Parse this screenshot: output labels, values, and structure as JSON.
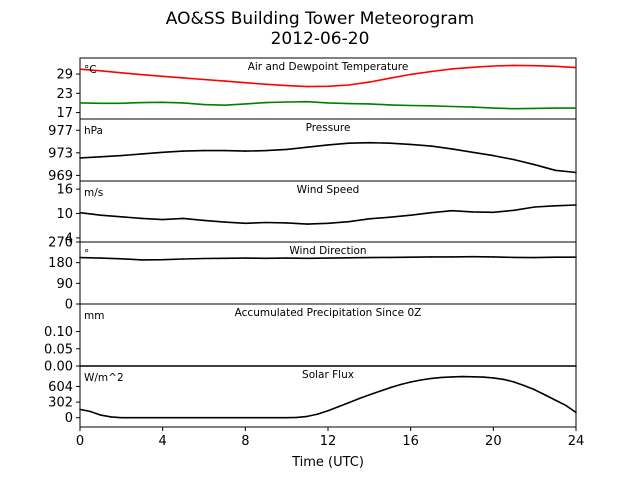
{
  "figure": {
    "title_line1": "AO&SS Building Tower Meteorogram",
    "title_line2": "2012-06-20",
    "xlabel": "Time (UTC)"
  },
  "chart_data": {
    "type": "line",
    "x_range": [
      0,
      24
    ],
    "x_ticks": [
      0,
      4,
      8,
      12,
      16,
      20,
      24
    ],
    "grid": false,
    "panels": [
      {
        "name": "temperature",
        "title": "Air and Dewpoint Temperature",
        "unit": "°C",
        "ylim": [
          15,
          34
        ],
        "yticks": [
          17,
          23,
          29
        ],
        "series": [
          {
            "color": "#ff0000",
            "x": [
              0,
              1,
              2,
              3,
              4,
              5,
              6,
              7,
              8,
              9,
              10,
              11,
              12,
              13,
              14,
              15,
              16,
              17,
              18,
              19,
              20,
              21,
              22,
              23,
              24
            ],
            "y": [
              30.5,
              30.0,
              29.4,
              28.8,
              28.3,
              27.8,
              27.3,
              26.8,
              26.3,
              25.8,
              25.4,
              25.1,
              25.2,
              25.6,
              26.5,
              27.7,
              28.9,
              29.8,
              30.6,
              31.1,
              31.5,
              31.7,
              31.6,
              31.4,
              31.0
            ]
          },
          {
            "color": "#008000",
            "x": [
              0,
              1,
              2,
              3,
              4,
              5,
              6,
              7,
              8,
              9,
              10,
              11,
              12,
              13,
              14,
              15,
              16,
              17,
              18,
              19,
              20,
              21,
              22,
              23,
              24
            ],
            "y": [
              20.0,
              19.9,
              19.9,
              20.1,
              20.2,
              20.0,
              19.5,
              19.3,
              19.7,
              20.1,
              20.3,
              20.4,
              20.0,
              19.8,
              19.7,
              19.4,
              19.2,
              19.1,
              18.9,
              18.7,
              18.4,
              18.2,
              18.3,
              18.4,
              18.4
            ]
          }
        ]
      },
      {
        "name": "pressure",
        "title": "Pressure",
        "unit": "hPa",
        "ylim": [
          968,
          979
        ],
        "yticks": [
          969,
          973,
          977
        ],
        "series": [
          {
            "color": "#000000",
            "x": [
              0,
              1,
              2,
              3,
              4,
              5,
              6,
              7,
              8,
              9,
              10,
              11,
              12,
              13,
              14,
              15,
              16,
              17,
              18,
              19,
              20,
              21,
              22,
              23,
              24
            ],
            "y": [
              972.1,
              972.3,
              972.5,
              972.8,
              973.1,
              973.3,
              973.4,
              973.4,
              973.3,
              973.4,
              973.6,
              974.0,
              974.4,
              974.7,
              974.8,
              974.7,
              974.5,
              974.2,
              973.7,
              973.1,
              972.5,
              971.8,
              970.9,
              969.9,
              969.5
            ]
          }
        ]
      },
      {
        "name": "wind_speed",
        "title": "Wind Speed",
        "unit": "m/s",
        "ylim": [
          3,
          18
        ],
        "yticks": [
          4,
          10,
          16
        ],
        "series": [
          {
            "color": "#000000",
            "x": [
              0,
              1,
              2,
              3,
              4,
              5,
              6,
              7,
              8,
              9,
              10,
              11,
              12,
              13,
              14,
              15,
              16,
              17,
              18,
              19,
              20,
              21,
              22,
              23,
              24
            ],
            "y": [
              10.2,
              9.6,
              9.2,
              8.8,
              8.5,
              8.8,
              8.3,
              7.9,
              7.6,
              7.8,
              7.7,
              7.4,
              7.6,
              8.0,
              8.7,
              9.1,
              9.6,
              10.2,
              10.7,
              10.4,
              10.3,
              10.8,
              11.6,
              11.9,
              12.1
            ]
          }
        ]
      },
      {
        "name": "wind_direction",
        "title": "Wind Direction",
        "unit": "°",
        "ylim": [
          0,
          270
        ],
        "yticks": [
          0,
          90,
          180,
          270
        ],
        "series": [
          {
            "color": "#000000",
            "x": [
              0,
              1,
              2,
              3,
              4,
              5,
              6,
              7,
              8,
              9,
              10,
              11,
              12,
              13,
              14,
              15,
              16,
              17,
              18,
              19,
              20,
              21,
              22,
              23,
              24
            ],
            "y": [
              202,
              200,
              197,
              192,
              193,
              196,
              198,
              199,
              200,
              199,
              200,
              199,
              200,
              201,
              202,
              203,
              204,
              205,
              205,
              206,
              205,
              203,
              202,
              204,
              204
            ]
          }
        ]
      },
      {
        "name": "precipitation",
        "title": "Accumulated Precipitation Since 0Z",
        "unit": "mm",
        "ylim": [
          0,
          0.18
        ],
        "yticks": [
          0.0,
          0.05,
          0.1
        ],
        "ytick_labels": [
          "0.00",
          "0.05",
          "0.10"
        ],
        "series": [
          {
            "color": "#000000",
            "x": [
              0,
              24
            ],
            "y": [
              0,
              0
            ]
          }
        ]
      },
      {
        "name": "solar_flux",
        "title": "Solar Flux",
        "unit": "W/m^2",
        "ylim": [
          -180,
          1000
        ],
        "yticks": [
          0,
          302,
          604
        ],
        "series": [
          {
            "color": "#000000",
            "x": [
              0,
              0.5,
              1,
              1.5,
              2,
              3,
              4,
              5,
              6,
              7,
              8,
              9,
              10,
              10.5,
              11,
              11.5,
              12,
              12.5,
              13,
              13.5,
              14,
              14.5,
              15,
              15.5,
              16,
              16.5,
              17,
              17.5,
              18,
              18.5,
              19,
              19.5,
              20,
              20.5,
              21,
              21.5,
              22,
              22.5,
              23,
              23.5,
              24
            ],
            "y": [
              160,
              120,
              50,
              15,
              0,
              0,
              0,
              0,
              0,
              0,
              0,
              0,
              0,
              5,
              25,
              70,
              135,
              210,
              290,
              370,
              440,
              510,
              580,
              640,
              690,
              730,
              760,
              780,
              790,
              795,
              792,
              785,
              770,
              740,
              690,
              620,
              540,
              440,
              340,
              240,
              100
            ]
          }
        ]
      }
    ]
  }
}
